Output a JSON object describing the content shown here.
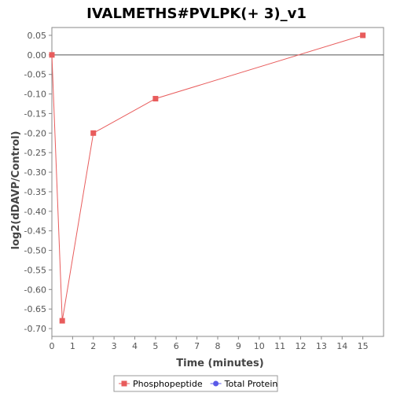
{
  "chart_data": {
    "type": "line",
    "title": "IVALMETHS#PVLPK(+ 3)_v1",
    "xlabel": "Time (minutes)",
    "ylabel": "log2(dDAVP/Control)",
    "xlim": [
      0,
      16
    ],
    "ylim": [
      -0.72,
      0.07
    ],
    "x_ticks": [
      "0",
      "1",
      "2",
      "3",
      "4",
      "5",
      "6",
      "7",
      "8",
      "9",
      "10",
      "11",
      "12",
      "13",
      "14",
      "15"
    ],
    "y_ticks": [
      "0.05",
      "0.00",
      "-0.05",
      "-0.10",
      "-0.15",
      "-0.20",
      "-0.25",
      "-0.30",
      "-0.35",
      "-0.40",
      "-0.45",
      "-0.50",
      "-0.55",
      "-0.60",
      "-0.65",
      "-0.70"
    ],
    "grid": false,
    "zero_line": true,
    "legend_position": "bottom",
    "series": [
      {
        "name": "Phosphopeptide",
        "color": "#e85c5c",
        "marker": "square",
        "x": [
          0,
          0.5,
          2,
          5,
          15
        ],
        "y": [
          0.0,
          -0.68,
          -0.2,
          -0.112,
          0.05
        ]
      },
      {
        "name": "Total Protein",
        "color": "#5a5ae8",
        "marker": "circle",
        "x": [],
        "y": []
      }
    ]
  }
}
